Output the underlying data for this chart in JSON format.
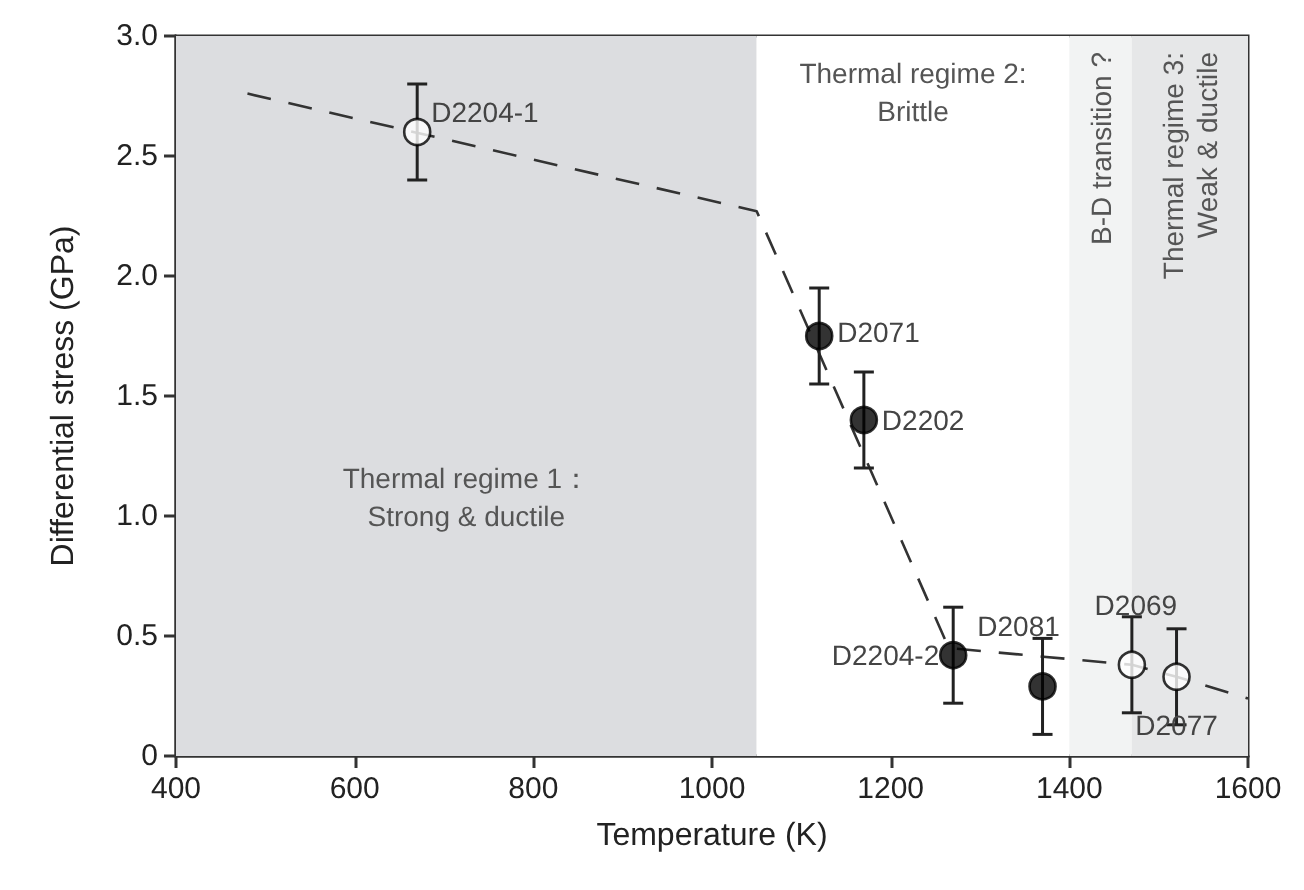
{
  "chart_data": {
    "type": "scatter",
    "xlabel": "Temperature (K)",
    "ylabel": "Differential stress (GPa)",
    "xlim": [
      400,
      1600
    ],
    "xticks": [
      400,
      600,
      800,
      1000,
      1200,
      1400,
      1600
    ],
    "ylim": [
      0,
      3
    ],
    "yticks": [
      0,
      {
        "value": 0.5,
        "label": "0.5"
      },
      {
        "value": 1,
        "label": "1.0"
      },
      {
        "value": 1.5,
        "label": "1.5"
      },
      {
        "value": 2,
        "label": "2.0"
      },
      {
        "value": 2.5,
        "label": "2.5"
      },
      {
        "value": 3,
        "label": "3.0"
      }
    ],
    "grid": false,
    "marker": "circle",
    "series": [
      {
        "color": "#000000",
        "x": [
          1120,
          1170,
          1270,
          1370
        ],
        "values": [
          1.75,
          1.4,
          0.42,
          0.29
        ],
        "errors": [
          0.2,
          0.2,
          0.2,
          0.2
        ]
      },
      {
        "color": "#ffffff",
        "x": [
          670,
          1470,
          1520
        ],
        "values": [
          2.6,
          0.38,
          0.33
        ],
        "errors": [
          0.2,
          0.2,
          0.2
        ]
      },
      {
        "type": "line",
        "color": "#333333",
        "line_style": "dashed",
        "marker": "none",
        "x": [
          480,
          1050,
          1265,
          1470,
          1520,
          1600
        ],
        "values": [
          2.76,
          2.27,
          0.45,
          0.38,
          0.33,
          0.24
        ]
      }
    ],
    "bands": [
      {
        "axis": "x",
        "from": 400,
        "to": 1050,
        "label": "Thermal regime 1：\nStrong & ductile",
        "color": "#dcdde0"
      },
      {
        "axis": "x",
        "from": 1050,
        "to": 1400,
        "label": "Thermal regime 2:\nBrittle",
        "color": "#ffffff"
      },
      {
        "axis": "x",
        "from": 1400,
        "to": 1470,
        "label": "B-D transition ?",
        "color": "#f2f3f3"
      },
      {
        "axis": "x",
        "from": 1470,
        "to": 1600,
        "label": "Thermal regime 3:\nWeak & ductile",
        "color": "#e6e7e8"
      }
    ],
    "annotations": [
      {
        "text": "D2204-1",
        "x": 670,
        "y": 2.6
      },
      {
        "text": "D2071",
        "x": 1120,
        "y": 1.75
      },
      {
        "text": "D2202",
        "x": 1170,
        "y": 1.4
      },
      {
        "text": "D2204-2",
        "x": 1270,
        "y": 0.42
      },
      {
        "text": "D2081",
        "x": 1370,
        "y": 0.29
      },
      {
        "text": "D2069",
        "x": 1470,
        "y": 0.38
      },
      {
        "text": "D2077",
        "x": 1520,
        "y": 0.33
      }
    ]
  }
}
